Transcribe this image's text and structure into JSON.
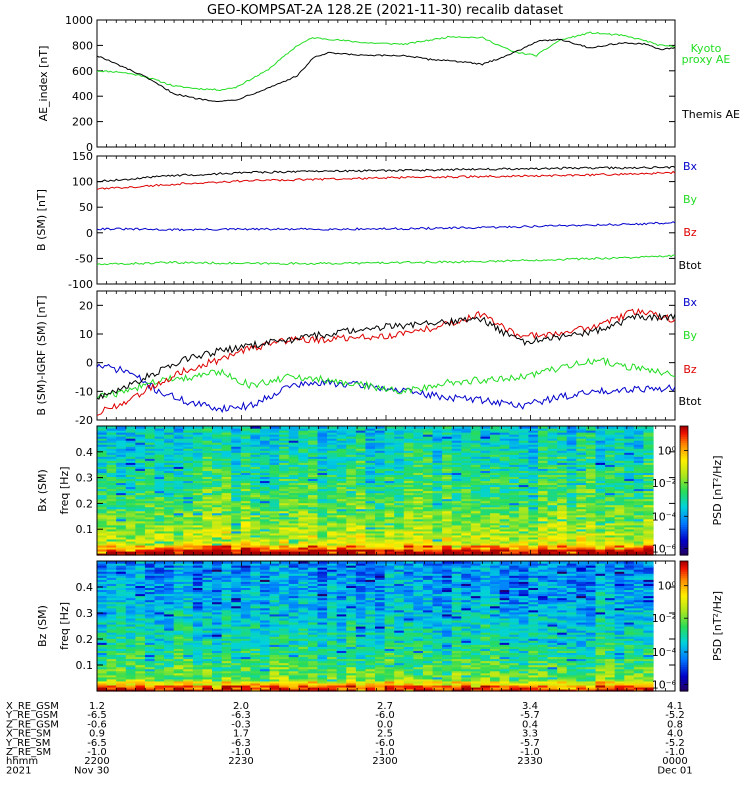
{
  "title": "GEO-KOMPSAT-2A 128.2E (2021-11-30) recalib dataset",
  "colors": {
    "black": "#000000",
    "green": "#22dd22",
    "red": "#dd0000",
    "blue": "#0000cc"
  },
  "chart_data": [
    {
      "type": "line",
      "ylabel": "AE_index [nT]",
      "ylim": [
        0,
        1000
      ],
      "yticks": [
        "0",
        "200",
        "400",
        "600",
        "800",
        "1000"
      ],
      "xlim": [
        0,
        75
      ],
      "series": [
        {
          "name": "Kyoto proxy AE",
          "color": "green",
          "x": [
            0,
            3,
            6,
            10,
            13,
            16,
            18,
            22,
            26,
            28,
            30,
            35,
            40,
            43,
            46,
            50,
            54,
            57,
            60,
            64,
            68,
            71,
            73,
            75
          ],
          "values": [
            600,
            590,
            560,
            480,
            460,
            450,
            470,
            600,
            800,
            860,
            850,
            820,
            810,
            840,
            870,
            860,
            750,
            720,
            840,
            900,
            880,
            840,
            800,
            790
          ]
        },
        {
          "name": "Themis AE",
          "color": "black",
          "x": [
            0,
            3,
            6,
            10,
            13,
            16,
            18,
            22,
            26,
            28,
            30,
            35,
            40,
            43,
            46,
            50,
            54,
            57,
            60,
            64,
            68,
            71,
            73,
            75
          ],
          "values": [
            720,
            640,
            560,
            420,
            380,
            360,
            370,
            460,
            560,
            700,
            740,
            720,
            720,
            690,
            680,
            650,
            740,
            830,
            850,
            780,
            820,
            810,
            770,
            780
          ]
        }
      ]
    },
    {
      "type": "line",
      "ylabel": "B (SM) [nT]",
      "ylim": [
        -100,
        150
      ],
      "yticks": [
        "-100",
        "-50",
        "0",
        "50",
        "100",
        "150"
      ],
      "xlim": [
        0,
        75
      ],
      "series": [
        {
          "name": "Bx",
          "color": "blue",
          "x": [
            0,
            10,
            20,
            30,
            40,
            50,
            60,
            70,
            75
          ],
          "values": [
            8,
            6,
            7,
            7,
            8,
            10,
            14,
            17,
            20
          ]
        },
        {
          "name": "By",
          "color": "green",
          "x": [
            0,
            10,
            20,
            30,
            40,
            50,
            60,
            70,
            75
          ],
          "values": [
            -62,
            -58,
            -60,
            -60,
            -58,
            -56,
            -52,
            -48,
            -45
          ]
        },
        {
          "name": "Bz",
          "color": "red",
          "x": [
            0,
            10,
            20,
            30,
            40,
            50,
            60,
            70,
            75
          ],
          "values": [
            85,
            95,
            102,
            105,
            108,
            110,
            112,
            115,
            118
          ]
        },
        {
          "name": "Btot",
          "color": "black",
          "x": [
            0,
            10,
            20,
            30,
            40,
            50,
            60,
            70,
            75
          ],
          "values": [
            100,
            112,
            118,
            120,
            122,
            124,
            126,
            127,
            128
          ]
        }
      ]
    },
    {
      "type": "line",
      "ylabel": "B (SM)-IGRF (SM) [nT]",
      "ylim": [
        -20,
        25
      ],
      "yticks": [
        "-20",
        "-10",
        "0",
        "10",
        "20"
      ],
      "xlim": [
        0,
        75
      ],
      "series": [
        {
          "name": "Bx",
          "color": "blue",
          "x": [
            0,
            4,
            8,
            12,
            16,
            20,
            25,
            30,
            35,
            40,
            45,
            50,
            55,
            60,
            65,
            70,
            75
          ],
          "values": [
            -1,
            -3,
            -10,
            -14,
            -16,
            -15,
            -8,
            -7,
            -8,
            -10,
            -12,
            -13,
            -15,
            -12,
            -10,
            -9,
            -9
          ]
        },
        {
          "name": "By",
          "color": "green",
          "x": [
            0,
            4,
            8,
            12,
            16,
            20,
            25,
            30,
            35,
            40,
            45,
            50,
            55,
            60,
            65,
            70,
            75
          ],
          "values": [
            -12,
            -10,
            -6,
            -5,
            -3,
            -8,
            -5,
            -6,
            -8,
            -10,
            -7,
            -6,
            -5,
            -2,
            1,
            -2,
            -4
          ]
        },
        {
          "name": "Bz",
          "color": "red",
          "x": [
            0,
            4,
            8,
            12,
            16,
            20,
            25,
            30,
            35,
            40,
            45,
            50,
            55,
            60,
            65,
            70,
            75
          ],
          "values": [
            -18,
            -13,
            -7,
            -2,
            1,
            5,
            8,
            8,
            9,
            10,
            13,
            17,
            9,
            10,
            13,
            18,
            15
          ]
        },
        {
          "name": "Btot",
          "color": "black",
          "x": [
            0,
            4,
            8,
            12,
            16,
            20,
            25,
            30,
            35,
            40,
            45,
            50,
            55,
            60,
            65,
            70,
            75
          ],
          "values": [
            -12,
            -8,
            -3,
            2,
            4,
            6,
            8,
            10,
            12,
            13,
            14,
            15,
            7,
            9,
            11,
            16,
            16
          ]
        }
      ]
    },
    {
      "type": "heatmap",
      "ylabel": "Bx (SM) freq [Hz]",
      "ylim": [
        0,
        0.5
      ],
      "yticks": [
        "0.1",
        "0.2",
        "0.3",
        "0.4"
      ],
      "colorbar_label": "PSD [nT²/Hz]",
      "colorbar_ticks": [
        "10⁰",
        "10⁻²",
        "10⁻⁴",
        "10⁻⁶"
      ]
    },
    {
      "type": "heatmap",
      "ylabel": "Bz (SM) freq [Hz]",
      "ylim": [
        0,
        0.5
      ],
      "yticks": [
        "0.1",
        "0.2",
        "0.3",
        "0.4"
      ],
      "colorbar_label": "PSD [nT²/Hz]",
      "colorbar_ticks": [
        "10⁰",
        "10⁻²",
        "10⁻⁴",
        "10⁻⁶"
      ]
    }
  ],
  "panel_labels": {
    "ae": {
      "kyoto": "Kyoto",
      "kyoto2": "proxy AE",
      "themis": "Themis AE"
    },
    "b": [
      "Bx",
      "By",
      "Bz",
      "Btot"
    ],
    "db": [
      "Bx",
      "By",
      "Bz",
      "Btot"
    ]
  },
  "orbit_table": {
    "labels": [
      "X_RE_GSM",
      "Y_RE_GSM",
      "Z_RE_GSM",
      "X_RE_SM",
      "Y_RE_SM",
      "Z_RE_SM",
      "hhmm",
      "2021"
    ],
    "columns": [
      [
        "1.2",
        "-6.5",
        "-0.6",
        "0.9",
        "-6.5",
        "-1.0",
        "2200",
        "Nov 30"
      ],
      [
        "2.0",
        "-6.3",
        "-0.3",
        "1.7",
        "-6.3",
        "-1.0",
        "2230",
        ""
      ],
      [
        "2.7",
        "-6.0",
        "0.0",
        "2.5",
        "-6.0",
        "-1.0",
        "2300",
        ""
      ],
      [
        "3.4",
        "-5.7",
        "0.4",
        "3.3",
        "-5.7",
        "-1.0",
        "2330",
        ""
      ],
      [
        "4.1",
        "-5.2",
        "0.8",
        "4.0",
        "-5.2",
        "-1.0",
        "0000",
        "Dec 01"
      ]
    ]
  }
}
